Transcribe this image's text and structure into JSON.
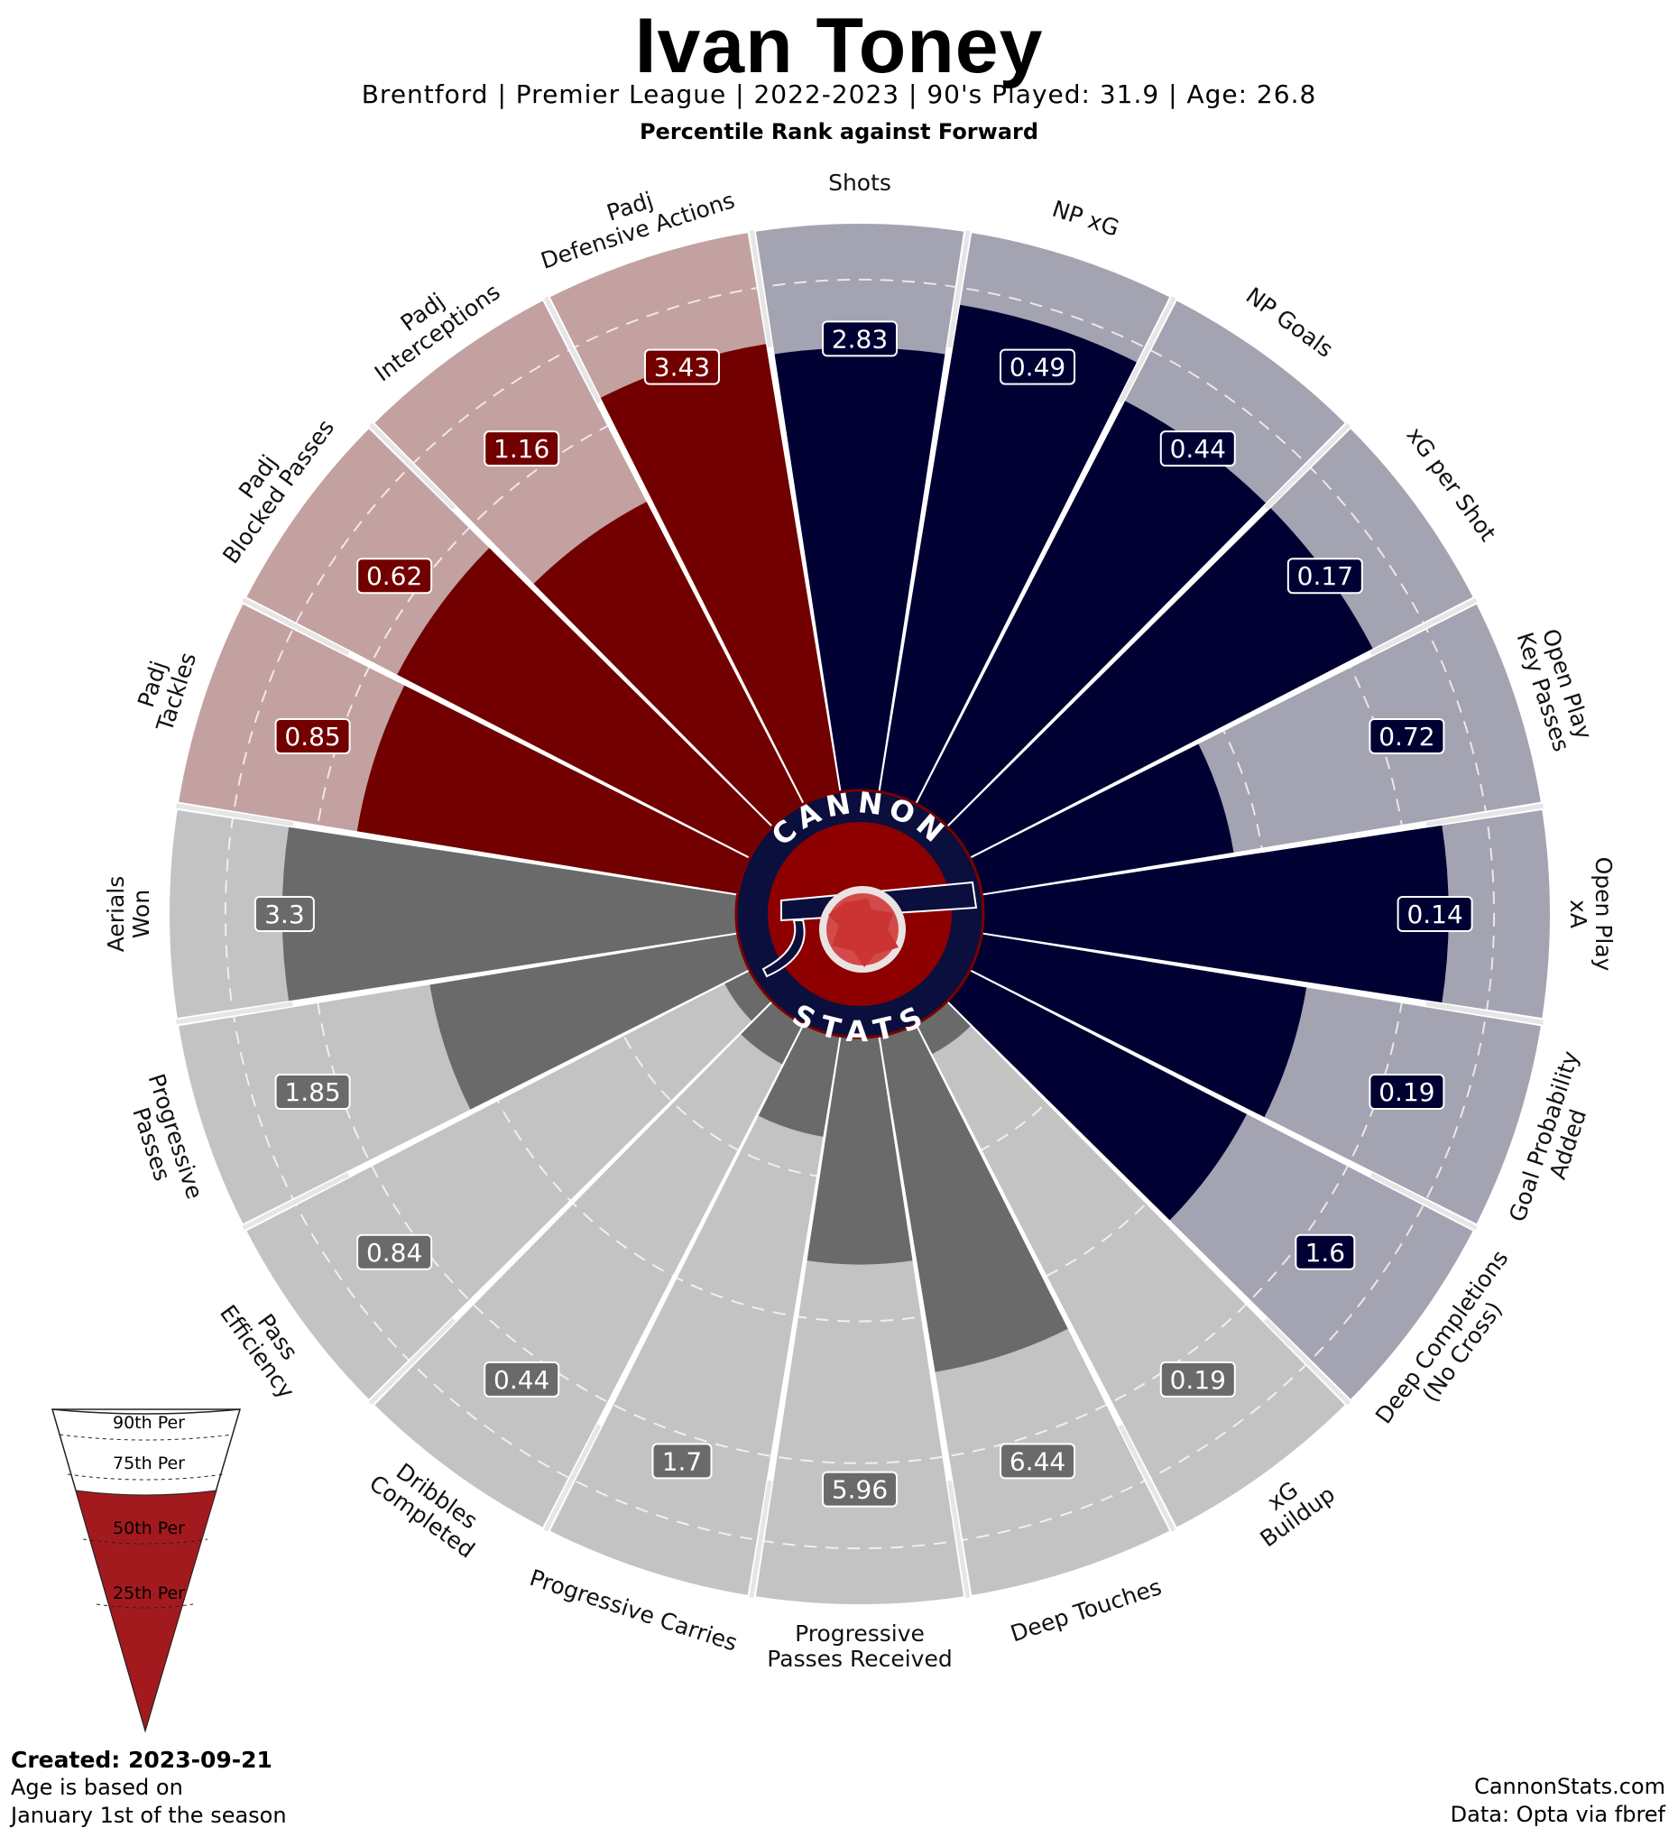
{
  "header": {
    "title": "Ivan Toney",
    "subtitle": "Brentford  | Premier League | 2022-2023 | 90's Played: 31.9 | Age: 26.8",
    "comparison": "Percentile Rank against Forward"
  },
  "logo": {
    "top_text": "CANNON",
    "bottom_text": "STATS"
  },
  "legend": {
    "labels": [
      "90th Per",
      "75th Per",
      "50th Per",
      "25th Per"
    ],
    "fill_color": "#a31a1e"
  },
  "footer": {
    "created": "Created: 2023-09-21",
    "note_line1": "Age is based on",
    "note_line2": "January 1st of the season",
    "site": "CannonStats.com",
    "source": "Data: Opta via fbref"
  },
  "colors": {
    "attacking": "#000033",
    "attacking_bg": "#a3a3b2",
    "defending": "#720000",
    "defending_bg": "#c3a1a1",
    "possession": "#6a6a6a",
    "possession_bg": "#c3c3c3"
  },
  "chart_data": {
    "type": "radial-bar",
    "scale": [
      0,
      100
    ],
    "reference_rings": [
      25,
      50,
      75,
      90
    ],
    "categories": [
      {
        "label": "Shots",
        "group": "attacking",
        "value": "2.83",
        "percentile": 78
      },
      {
        "label": "NP xG",
        "group": "attacking",
        "value": "0.49",
        "percentile": 87
      },
      {
        "label": "NP Goals",
        "group": "attacking",
        "value": "0.44",
        "percentile": 80
      },
      {
        "label": "xG per Shot",
        "group": "attacking",
        "value": "0.17",
        "percentile": 80
      },
      {
        "label": "Open Play\nKey Passes",
        "group": "attacking",
        "value": "0.72",
        "percentile": 45
      },
      {
        "label": "Open Play\nxA",
        "group": "attacking",
        "value": "0.14",
        "percentile": 82
      },
      {
        "label": "Goal Probability\nAdded",
        "group": "attacking",
        "value": "0.19",
        "percentile": 58
      },
      {
        "label": "Deep Completions\n(No Cross)",
        "group": "attacking",
        "value": "1.6",
        "percentile": 55
      },
      {
        "label": "xG\nBuildup",
        "group": "possession",
        "value": "0.19",
        "percentile": 6
      },
      {
        "label": "Deep Touches",
        "group": "possession",
        "value": "6.44",
        "percentile": 60
      },
      {
        "label": "Progressive\nPasses Received",
        "group": "possession",
        "value": "5.96",
        "percentile": 40
      },
      {
        "label": "Progressive Carries",
        "group": "possession",
        "value": "1.7",
        "percentile": 18
      },
      {
        "label": "Dribbles\nCompleted",
        "group": "possession",
        "value": "0.44",
        "percentile": 8
      },
      {
        "label": "Pass\nEfficiency",
        "group": "possession",
        "value": "0.84",
        "percentile": 5
      },
      {
        "label": "Progressive\nPasses",
        "group": "possession",
        "value": "1.85",
        "percentile": 55
      },
      {
        "label": "Aerials\nWon",
        "group": "possession",
        "value": "3.3",
        "percentile": 80
      },
      {
        "label": "Padj\nTackles",
        "group": "defending",
        "value": "0.85",
        "percentile": 68
      },
      {
        "label": "Padj\nBlocked Passes",
        "group": "defending",
        "value": "0.62",
        "percentile": 70
      },
      {
        "label": "Padj\nInterceptions",
        "group": "defending",
        "value": "1.16",
        "percentile": 60
      },
      {
        "label": "Padj\nDefensive Actions",
        "group": "defending",
        "value": "3.43",
        "percentile": 80
      }
    ]
  }
}
